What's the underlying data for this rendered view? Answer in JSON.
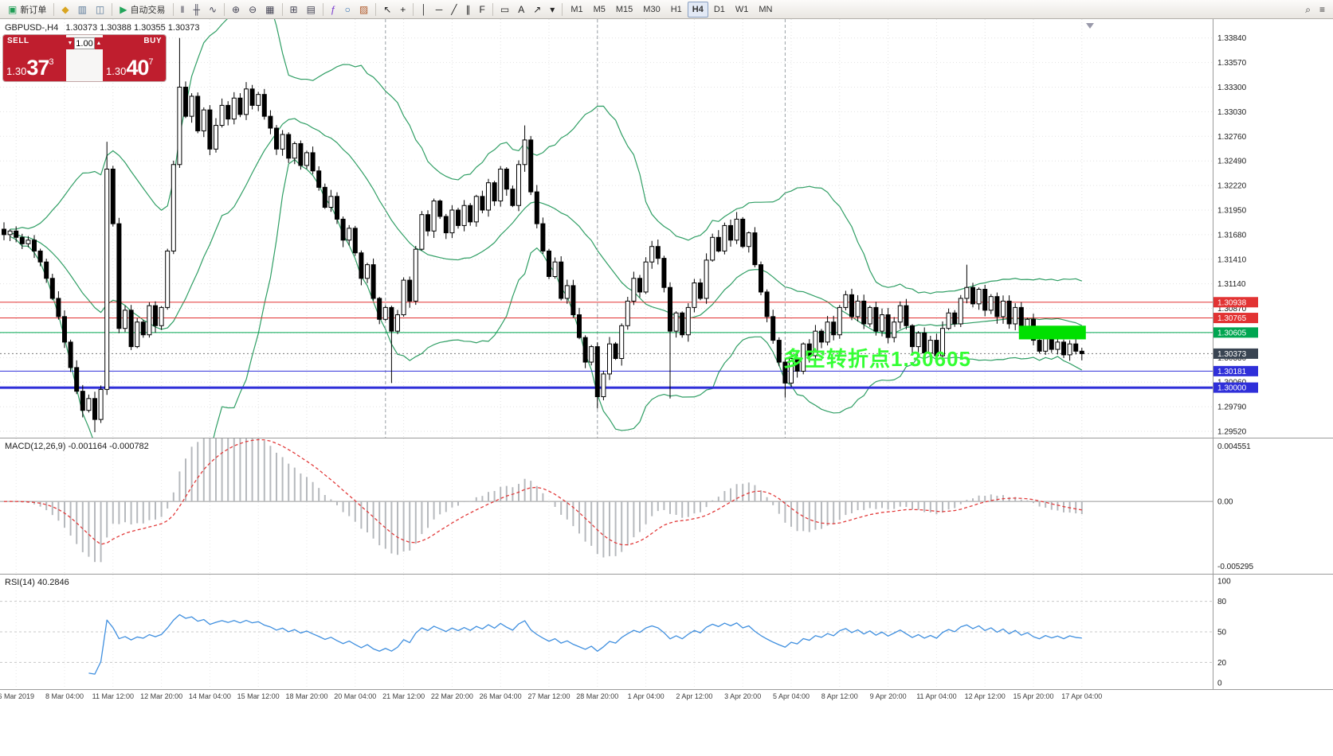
{
  "colors": {
    "trade_red": "#bf1e2e",
    "annotation_green": "#33ff33",
    "box_green": "#00e000",
    "line_green": "#00a651",
    "line_red": "#e23333",
    "line_blue": "#2f2fd9",
    "current_tag": "#394452",
    "bollinger_green": "#2f9e64",
    "macd_hist": "#b6b9bd",
    "macd_signal": "#e23b3b",
    "rsi_blue": "#3f8fdf"
  },
  "toolbar": {
    "buttons": [
      {
        "name": "new-order",
        "glyph": "▣",
        "glyph_color": "#1f9d55",
        "label": "新订单"
      },
      {
        "sep": true
      },
      {
        "name": "market-watch",
        "glyph": "◆",
        "glyph_color": "#d9a520"
      },
      {
        "name": "data-window",
        "glyph": "▥",
        "glyph_color": "#5a7a9a"
      },
      {
        "name": "navigator",
        "glyph": "◫",
        "glyph_color": "#5a7a9a"
      },
      {
        "sep": true
      },
      {
        "name": "autotrading",
        "glyph": "▶",
        "glyph_color": "#23a55a",
        "label": "自动交易"
      },
      {
        "sep": true
      },
      {
        "name": "chart-bars",
        "glyph": "‖",
        "glyph_color": "#445"
      },
      {
        "name": "chart-candles",
        "glyph": "╫",
        "glyph_color": "#445"
      },
      {
        "name": "chart-line",
        "glyph": "∿",
        "glyph_color": "#445"
      },
      {
        "sep": true
      },
      {
        "name": "zoom-in",
        "glyph": "⊕",
        "glyph_color": "#445"
      },
      {
        "name": "zoom-out",
        "glyph": "⊖",
        "glyph_color": "#445"
      },
      {
        "name": "auto-arrange",
        "glyph": "▦",
        "glyph_color": "#445"
      },
      {
        "sep": true
      },
      {
        "name": "tile-windows",
        "glyph": "⊞",
        "glyph_color": "#445"
      },
      {
        "name": "cascade-windows",
        "glyph": "▤",
        "glyph_color": "#445"
      },
      {
        "sep": true
      },
      {
        "name": "indicators",
        "glyph": "ƒ",
        "glyph_color": "#7a3bd0"
      },
      {
        "name": "periods",
        "glyph": "○",
        "glyph_color": "#2b6cb0"
      },
      {
        "name": "templates",
        "glyph": "▨",
        "glyph_color": "#b05a2b"
      },
      {
        "sep": true
      },
      {
        "name": "cursor",
        "glyph": "↖",
        "glyph_color": "#222"
      },
      {
        "name": "crosshair",
        "glyph": "+",
        "glyph_color": "#222"
      },
      {
        "sep": true
      },
      {
        "name": "vertical-line",
        "glyph": "│",
        "glyph_color": "#222"
      },
      {
        "name": "horizontal-line",
        "glyph": "─",
        "glyph_color": "#222"
      },
      {
        "name": "trendline",
        "glyph": "╱",
        "glyph_color": "#222"
      },
      {
        "name": "equidistant-channel",
        "glyph": "∥",
        "glyph_color": "#222"
      },
      {
        "name": "fibonacci",
        "glyph": "F",
        "glyph_color": "#222"
      },
      {
        "sep": true
      },
      {
        "name": "shapes",
        "glyph": "▭",
        "glyph_color": "#222"
      },
      {
        "name": "text",
        "glyph": "A",
        "glyph_color": "#222"
      },
      {
        "name": "arrows",
        "glyph": "↗",
        "glyph_color": "#222"
      },
      {
        "name": "more-tools",
        "glyph": "▾",
        "glyph_color": "#222"
      }
    ],
    "timeframes": [
      "M1",
      "M5",
      "M15",
      "M30",
      "H1",
      "H4",
      "D1",
      "W1",
      "MN"
    ],
    "active_timeframe": "H4",
    "right_buttons": [
      {
        "name": "search",
        "glyph": "⌕",
        "glyph_color": "#333"
      },
      {
        "name": "window-list",
        "glyph": "≡",
        "glyph_color": "#333"
      }
    ]
  },
  "chart_header": {
    "title": "GBPUSD-,H4",
    "ohlc": "1.30373 1.30388 1.30355 1.30373"
  },
  "trade_panel": {
    "sell_label": "SELL",
    "buy_label": "BUY",
    "volume": "1.00",
    "spin_down": "▼",
    "spin_up": "▲",
    "sell_price_prefix": "1.30",
    "sell_price_main": "37",
    "sell_price_sup": "3",
    "buy_price_prefix": "1.30",
    "buy_price_main": "40",
    "buy_price_sup": "7"
  },
  "annotation": {
    "text": "多空转折点1.30605",
    "color": "#33ff33"
  },
  "chart_data": {
    "type": "candlestick",
    "symbol": "GBPUSD",
    "timeframe": "H4",
    "first_open": 1.3174,
    "closes": [
      1.3168,
      1.3172,
      1.3165,
      1.3158,
      1.3162,
      1.315,
      1.3138,
      1.312,
      1.3098,
      1.3078,
      1.305,
      1.3022,
      1.2996,
      1.2975,
      1.2988,
      1.2965,
      1.2998,
      1.324,
      1.318,
      1.3065,
      1.3085,
      1.3045,
      1.3072,
      1.3058,
      1.309,
      1.3068,
      1.3088,
      1.315,
      1.3245,
      1.333,
      1.3298,
      1.332,
      1.3282,
      1.3305,
      1.3262,
      1.3288,
      1.331,
      1.3295,
      1.3318,
      1.33,
      1.3328,
      1.331,
      1.3322,
      1.3298,
      1.3285,
      1.3262,
      1.3278,
      1.3252,
      1.3268,
      1.3244,
      1.3258,
      1.3238,
      1.322,
      1.3198,
      1.321,
      1.3185,
      1.3162,
      1.3175,
      1.3148,
      1.312,
      1.3135,
      1.3098,
      1.3075,
      1.3088,
      1.3062,
      1.308,
      1.3118,
      1.3095,
      1.3152,
      1.319,
      1.3172,
      1.3205,
      1.3188,
      1.317,
      1.3195,
      1.3178,
      1.32,
      1.3182,
      1.321,
      1.3195,
      1.3225,
      1.3205,
      1.324,
      1.3218,
      1.32,
      1.3245,
      1.3272,
      1.3215,
      1.318,
      1.315,
      1.3122,
      1.3138,
      1.3098,
      1.3112,
      1.308,
      1.3055,
      1.3028,
      1.3045,
      1.299,
      1.3015,
      1.3048,
      1.3032,
      1.3068,
      1.3095,
      1.312,
      1.3105,
      1.3138,
      1.3155,
      1.3142,
      1.311,
      1.3062,
      1.3082,
      1.3058,
      1.3088,
      1.3115,
      1.3098,
      1.314,
      1.3165,
      1.315,
      1.3178,
      1.3162,
      1.3185,
      1.3155,
      1.317,
      1.3135,
      1.3105,
      1.3078,
      1.3052,
      1.3028,
      1.3005,
      1.3032,
      1.3018,
      1.3048,
      1.3035,
      1.3062,
      1.305,
      1.3072,
      1.3058,
      1.3088,
      1.3102,
      1.3078,
      1.3095,
      1.307,
      1.3088,
      1.3062,
      1.308,
      1.3055,
      1.3072,
      1.309,
      1.3068,
      1.3045,
      1.306,
      1.3038,
      1.3052,
      1.3035,
      1.3065,
      1.3082,
      1.307,
      1.3098,
      1.311,
      1.3092,
      1.3108,
      1.3085,
      1.31,
      1.3078,
      1.3095,
      1.307,
      1.3088,
      1.3062,
      1.3075,
      1.3052,
      1.304,
      1.3055,
      1.3042,
      1.305,
      1.3036,
      1.3048,
      1.304,
      1.30373
    ],
    "wick_overrides": {
      "15": {
        "low": 1.2951
      },
      "17": {
        "high": 1.327,
        "low": 1.2992
      },
      "29": {
        "high": 1.3384
      },
      "64": {
        "low": 1.3005
      },
      "86": {
        "high": 1.3288
      },
      "98": {
        "low": 1.2977
      },
      "110": {
        "low": 1.2988
      },
      "129": {
        "low": 1.2989
      },
      "159": {
        "high": 1.3135
      }
    },
    "price_axis": {
      "min": 1.2945,
      "max": 1.3403,
      "labels": [
        "1.33840",
        "1.33570",
        "1.33300",
        "1.33030",
        "1.32760",
        "1.32490",
        "1.32220",
        "1.31950",
        "1.31680",
        "1.31410",
        "1.31140",
        "1.30870",
        "1.30600",
        "1.30330",
        "1.30060",
        "1.29790",
        "1.29520"
      ]
    },
    "hlines": [
      {
        "value": 1.30938,
        "label": "1.30938",
        "color": "#e23333",
        "width": 1,
        "tag": true
      },
      {
        "value": 1.30765,
        "label": "1.30765",
        "color": "#e23333",
        "width": 1,
        "tag": true
      },
      {
        "value": 1.30605,
        "label": "1.30605",
        "color": "#00a651",
        "width": 1,
        "tag": true
      },
      {
        "value": 1.30181,
        "label": "1.30181",
        "color": "#2f2fd9",
        "width": 1,
        "tag": true
      },
      {
        "value": 1.3,
        "label": "1.30000",
        "color": "#2f2fd9",
        "width": 3,
        "tag": true
      }
    ],
    "current_price": {
      "value": 1.30373,
      "display": "1.30373",
      "color": "#394452"
    },
    "green_box": {
      "i_start": 168,
      "i_end": 178,
      "price_top": 1.3068,
      "price_bottom": 1.3053,
      "color": "#00e000"
    },
    "vlines_i": [
      63,
      98,
      129
    ],
    "bollinger": {
      "period": 20,
      "deviation": 2,
      "color": "#2f9e64"
    },
    "time_axis": [
      "6 Mar 2019",
      "8 Mar 04:00",
      "11 Mar 12:00",
      "12 Mar 20:00",
      "14 Mar 04:00",
      "15 Mar 12:00",
      "18 Mar 20:00",
      "20 Mar 04:00",
      "21 Mar 12:00",
      "22 Mar 20:00",
      "26 Mar 04:00",
      "27 Mar 12:00",
      "28 Mar 20:00",
      "1 Apr 04:00",
      "2 Apr 12:00",
      "3 Apr 20:00",
      "5 Apr 04:00",
      "8 Apr 12:00",
      "9 Apr 20:00",
      "11 Apr 04:00",
      "12 Apr 12:00",
      "15 Apr 20:00",
      "17 Apr 04:00"
    ],
    "indicators": {
      "macd": {
        "label": "MACD(12,26,9) -0.001164 -0.000782",
        "fast": 12,
        "slow": 26,
        "signal": 9,
        "scale_max": 0.004551,
        "scale_min": -0.005295,
        "scale_labels": [
          "0.004551",
          "0.00",
          "-0.005295"
        ],
        "hist_color": "#b6b9bd",
        "signal_color": "#e23b3b"
      },
      "rsi": {
        "label": "RSI(14) 40.2846",
        "period": 14,
        "levels": [
          80,
          50,
          20
        ],
        "scale_labels": [
          "100",
          "80",
          "50",
          "20",
          "0"
        ],
        "color": "#3f8fdf"
      }
    }
  }
}
